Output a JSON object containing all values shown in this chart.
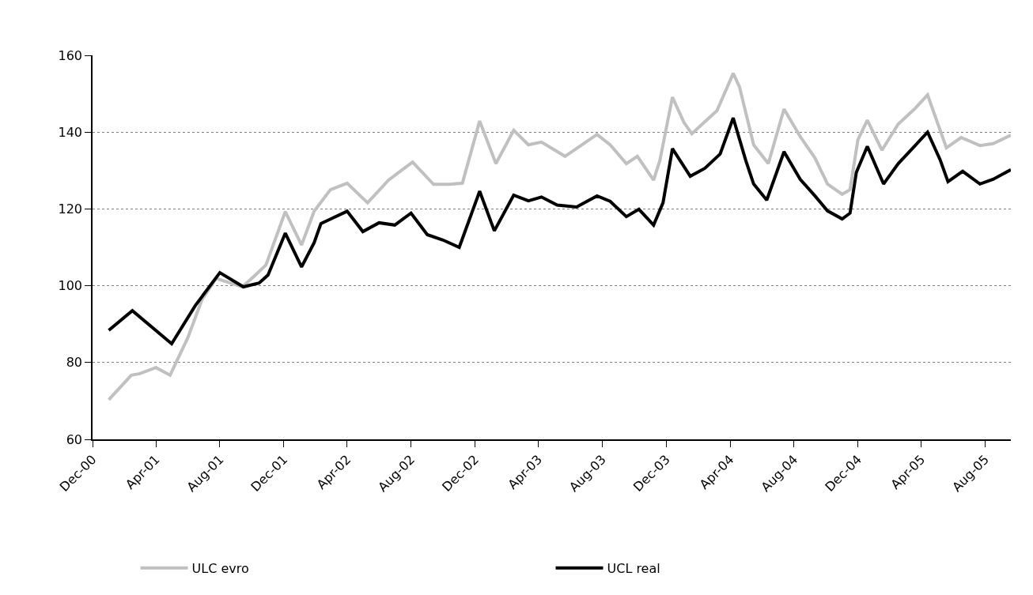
{
  "chart_data": {
    "type": "line",
    "ylim": [
      60,
      160
    ],
    "yticks": [
      60,
      80,
      100,
      120,
      140,
      160
    ],
    "xlim": [
      "2000-12-01",
      "2005-09-19"
    ],
    "xticks": [
      {
        "value": "2000-12-01",
        "label": "Dec-00"
      },
      {
        "value": "2001-04-01",
        "label": "Apr-01"
      },
      {
        "value": "2001-08-01",
        "label": "Aug-01"
      },
      {
        "value": "2001-12-01",
        "label": "Dec-01"
      },
      {
        "value": "2002-04-01",
        "label": "Apr-02"
      },
      {
        "value": "2002-08-01",
        "label": "Aug-02"
      },
      {
        "value": "2002-12-01",
        "label": "Dec-02"
      },
      {
        "value": "2003-04-01",
        "label": "Apr-03"
      },
      {
        "value": "2003-08-01",
        "label": "Aug-03"
      },
      {
        "value": "2003-12-01",
        "label": "Dec-03"
      },
      {
        "value": "2004-04-01",
        "label": "Apr-04"
      },
      {
        "value": "2004-08-01",
        "label": "Aug-04"
      },
      {
        "value": "2004-12-01",
        "label": "Dec-04"
      },
      {
        "value": "2005-04-01",
        "label": "Apr-05"
      },
      {
        "value": "2005-08-01",
        "label": "Aug-05"
      }
    ],
    "grid": "y",
    "legend": "bottom",
    "marker": "none",
    "line_style": "solid",
    "series": [
      {
        "name": "ULC evro",
        "color": "#c0c0c0",
        "x": [
          "2001-01-01",
          "2001-02-13",
          "2001-03-01",
          "2001-04-01",
          "2001-04-28",
          "2001-06-01",
          "2001-06-28",
          "2001-07-25",
          "2001-09-13",
          "2001-10-04",
          "2001-10-28",
          "2001-12-04",
          "2002-01-04",
          "2002-01-28",
          "2002-02-28",
          "2002-04-01",
          "2002-05-10",
          "2002-06-19",
          "2002-08-04",
          "2002-09-13",
          "2002-10-13",
          "2002-11-07",
          "2002-12-10",
          "2003-01-10",
          "2003-02-13",
          "2003-03-13",
          "2003-04-07",
          "2003-05-22",
          "2003-07-22",
          "2003-08-16",
          "2003-09-16",
          "2003-10-07",
          "2003-11-07",
          "2003-11-19",
          "2003-12-13",
          "2004-01-04",
          "2004-01-19",
          "2004-03-07",
          "2004-04-07",
          "2004-04-19",
          "2004-05-16",
          "2004-06-13",
          "2004-07-13",
          "2004-08-13",
          "2004-09-10",
          "2004-10-04",
          "2004-11-01",
          "2004-11-16",
          "2004-12-01",
          "2004-12-19",
          "2005-01-16",
          "2005-02-16",
          "2005-03-19",
          "2005-04-13",
          "2005-05-19",
          "2005-06-16",
          "2005-07-22",
          "2005-08-16",
          "2005-09-19"
        ],
        "values": [
          70.3,
          76.7,
          77.1,
          78.7,
          76.7,
          86.5,
          96.4,
          101.9,
          99.7,
          102.3,
          105.4,
          119.3,
          110.6,
          119.4,
          125.0,
          126.7,
          121.6,
          127.5,
          132.2,
          126.4,
          126.4,
          126.7,
          142.9,
          131.8,
          140.5,
          136.7,
          137.4,
          133.7,
          139.4,
          136.7,
          131.8,
          133.7,
          127.5,
          132.6,
          149.1,
          142.5,
          139.6,
          145.6,
          155.3,
          151.8,
          136.7,
          131.8,
          146.0,
          138.8,
          133.3,
          126.5,
          123.8,
          125.0,
          138.0,
          143.1,
          135.3,
          142.1,
          146.0,
          149.7,
          135.9,
          138.6,
          136.5,
          137.0,
          139.2
        ]
      },
      {
        "name": "UCL real",
        "color": "#000000",
        "x": [
          "2001-01-01",
          "2001-02-15",
          "2001-05-01",
          "2001-06-15",
          "2001-08-01",
          "2001-09-15",
          "2001-10-15",
          "2001-11-01",
          "2001-12-04",
          "2002-01-04",
          "2002-01-28",
          "2002-02-10",
          "2002-03-01",
          "2002-04-01",
          "2002-05-01",
          "2002-06-01",
          "2002-07-01",
          "2002-08-01",
          "2002-09-01",
          "2002-10-01",
          "2002-11-01",
          "2002-12-10",
          "2003-01-07",
          "2003-02-13",
          "2003-03-13",
          "2003-04-07",
          "2003-05-07",
          "2003-06-13",
          "2003-07-22",
          "2003-08-16",
          "2003-09-16",
          "2003-10-10",
          "2003-11-07",
          "2003-11-25",
          "2003-12-13",
          "2004-01-16",
          "2004-02-13",
          "2004-03-13",
          "2004-04-07",
          "2004-05-01",
          "2004-05-16",
          "2004-06-10",
          "2004-07-13",
          "2004-08-13",
          "2004-09-10",
          "2004-10-04",
          "2004-11-01",
          "2004-11-16",
          "2004-11-28",
          "2004-12-19",
          "2005-01-19",
          "2005-02-16",
          "2005-03-19",
          "2005-04-13",
          "2005-05-07",
          "2005-05-22",
          "2005-06-19",
          "2005-07-22",
          "2005-08-16",
          "2005-09-19"
        ],
        "values": [
          88.4,
          93.5,
          84.9,
          94.8,
          103.4,
          99.7,
          100.7,
          102.8,
          113.7,
          104.9,
          111.2,
          116.2,
          117.4,
          119.4,
          114.1,
          116.4,
          115.8,
          118.9,
          113.3,
          111.9,
          110.0,
          124.6,
          114.3,
          123.6,
          122.1,
          123.1,
          121.0,
          120.5,
          123.4,
          122.0,
          118.0,
          119.9,
          115.8,
          121.6,
          135.7,
          128.5,
          130.6,
          134.3,
          143.7,
          132.6,
          126.5,
          122.3,
          134.9,
          127.7,
          123.4,
          119.5,
          117.4,
          118.9,
          129.5,
          136.3,
          126.5,
          131.8,
          136.3,
          140.0,
          132.8,
          127.1,
          129.8,
          126.5,
          127.7,
          130.2
        ]
      }
    ]
  }
}
